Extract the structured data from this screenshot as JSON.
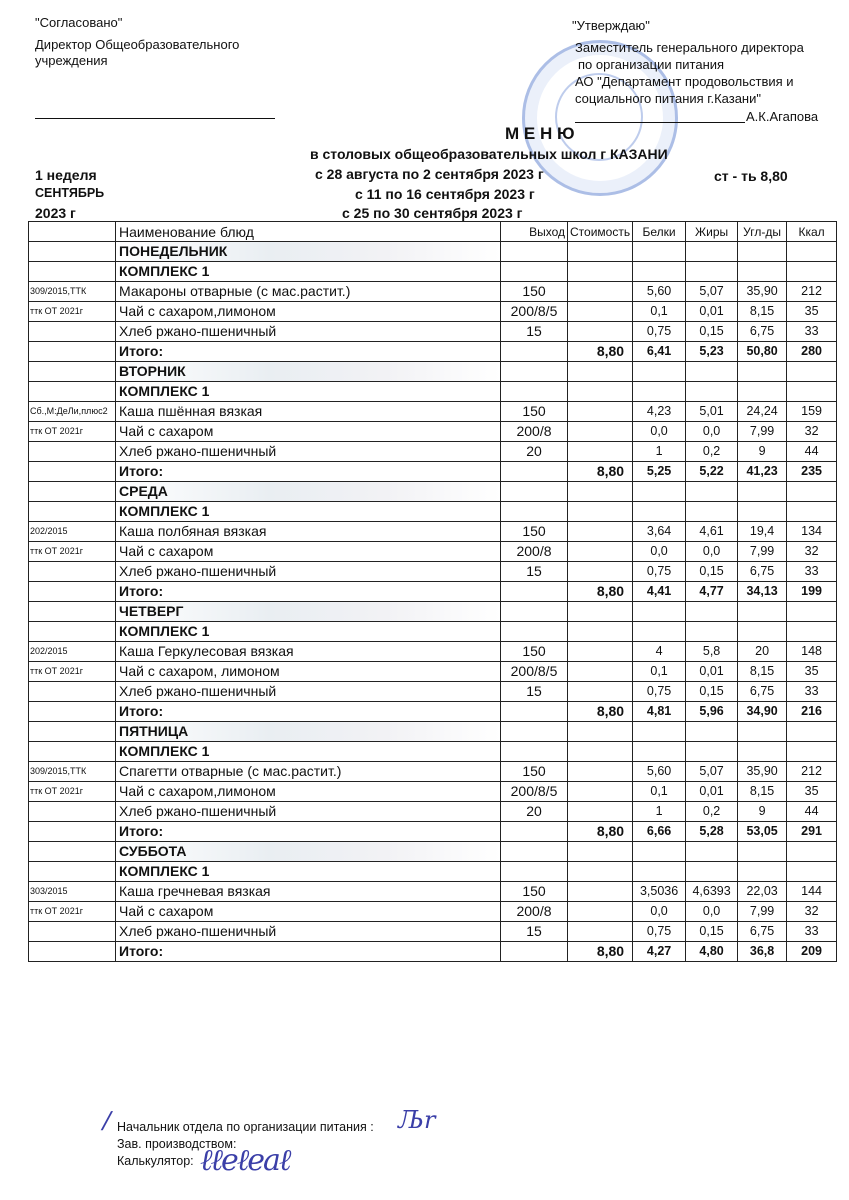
{
  "header": {
    "left": {
      "agreed": "\"Согласовано\"",
      "line1": "Директор Общеобразовательного",
      "line2": "учреждения"
    },
    "right": {
      "approve": "\"Утверждаю\"",
      "line1": "Заместитель генерального директора",
      "line2": "по организации питания",
      "line3": "АО \"Департамент продовольствия и",
      "line4": "социального питания г.Казани\"",
      "signer": "А.К.Агапова"
    },
    "title": "М Е Н Ю",
    "subtitle": "в столовых общеобразовательных школ г КАЗАНИ",
    "periods": [
      "с  28 августа   по  2  сентября  2023 г",
      "с  11  по 16  сентября 2023 г",
      "с 25  по 30 сентября 2023 г"
    ],
    "week": "1 неделя",
    "month": "СЕНТЯБРЬ",
    "year": "2023 г",
    "price": "ст - ть 8,80"
  },
  "table": {
    "columns": [
      "",
      "Наименование блюд",
      "Выход",
      "Стоимость",
      "Белки",
      "Жиры",
      "Угл-ды",
      "Ккал"
    ],
    "days": [
      {
        "day": "ПОНЕДЕЛЬНИК",
        "kompleks": "КОМПЛЕКС 1",
        "items": [
          {
            "code": "309/2015,ТТК",
            "name": "Макароны отварные (с мас.растит.)",
            "out": "150",
            "b": "5,60",
            "j": "5,07",
            "u": "35,90",
            "k": "212"
          },
          {
            "code": "ттк ОТ 2021г",
            "name": "Чай с сахаром,лимоном",
            "out": "200/8/5",
            "b": "0,1",
            "j": "0,01",
            "u": "8,15",
            "k": "35"
          },
          {
            "code": "",
            "name": "Хлеб ржано-пшеничный",
            "out": "15",
            "b": "0,75",
            "j": "0,15",
            "u": "6,75",
            "k": "33"
          }
        ],
        "total": {
          "label": "Итого:",
          "cost": "8,80",
          "b": "6,41",
          "j": "5,23",
          "u": "50,80",
          "k": "280"
        }
      },
      {
        "day": "ВТОРНИК",
        "kompleks": "КОМПЛЕКС 1",
        "items": [
          {
            "code": "Сб.,М:ДеЛи,плюс2",
            "name": "Каша пшённая вязкая",
            "out": "150",
            "b": "4,23",
            "j": "5,01",
            "u": "24,24",
            "k": "159"
          },
          {
            "code": "ттк ОТ 2021г",
            "name": "Чай с сахаром",
            "out": "200/8",
            "b": "0,0",
            "j": "0,0",
            "u": "7,99",
            "k": "32"
          },
          {
            "code": "",
            "name": "Хлеб ржано-пшеничный",
            "out": "20",
            "b": "1",
            "j": "0,2",
            "u": "9",
            "k": "44"
          }
        ],
        "total": {
          "label": "Итого:",
          "cost": "8,80",
          "b": "5,25",
          "j": "5,22",
          "u": "41,23",
          "k": "235"
        }
      },
      {
        "day": "СРЕДА",
        "kompleks": "КОМПЛЕКС 1",
        "items": [
          {
            "code": "202/2015",
            "name": "Каша  полбяная вязкая",
            "out": "150",
            "b": "3,64",
            "j": "4,61",
            "u": "19,4",
            "k": "134"
          },
          {
            "code": "ттк ОТ 2021г",
            "name": "Чай с сахаром",
            "out": "200/8",
            "b": "0,0",
            "j": "0,0",
            "u": "7,99",
            "k": "32"
          },
          {
            "code": "",
            "name": "Хлеб ржано-пшеничный",
            "out": "15",
            "b": "0,75",
            "j": "0,15",
            "u": "6,75",
            "k": "33"
          }
        ],
        "total": {
          "label": "Итого:",
          "cost": "8,80",
          "b": "4,41",
          "j": "4,77",
          "u": "34,13",
          "k": "199"
        }
      },
      {
        "day": "ЧЕТВЕРГ",
        "kompleks": "КОМПЛЕКС 1",
        "items": [
          {
            "code": "202/2015",
            "name": "Каша  Геркулесовая вязкая",
            "out": "150",
            "b": "4",
            "j": "5,8",
            "u": "20",
            "k": "148"
          },
          {
            "code": "ттк ОТ 2021г",
            "name": "Чай с сахаром, лимоном",
            "out": "200/8/5",
            "b": "0,1",
            "j": "0,01",
            "u": "8,15",
            "k": "35"
          },
          {
            "code": "",
            "name": "Хлеб ржано-пшеничный",
            "out": "15",
            "b": "0,75",
            "j": "0,15",
            "u": "6,75",
            "k": "33"
          }
        ],
        "total": {
          "label": "Итого:",
          "cost": "8,80",
          "b": "4,81",
          "j": "5,96",
          "u": "34,90",
          "k": "216"
        }
      },
      {
        "day": "ПЯТНИЦА",
        "kompleks": "КОМПЛЕКС 1",
        "items": [
          {
            "code": "309/2015,ТТК",
            "name": "Спагетти отварные (с мас.растит.)",
            "out": "150",
            "b": "5,60",
            "j": "5,07",
            "u": "35,90",
            "k": "212"
          },
          {
            "code": "ттк ОТ 2021г",
            "name": "Чай с сахаром,лимоном",
            "out": "200/8/5",
            "b": "0,1",
            "j": "0,01",
            "u": "8,15",
            "k": "35"
          },
          {
            "code": "",
            "name": "Хлеб ржано-пшеничный",
            "out": "20",
            "b": "1",
            "j": "0,2",
            "u": "9",
            "k": "44"
          }
        ],
        "total": {
          "label": "Итого:",
          "cost": "8,80",
          "b": "6,66",
          "j": "5,28",
          "u": "53,05",
          "k": "291"
        }
      },
      {
        "day": "СУББОТА",
        "kompleks": "КОМПЛЕКС 1",
        "items": [
          {
            "code": "303/2015",
            "name": "Каша гречневая вязкая",
            "out": "150",
            "b": "3,5036",
            "j": "4,6393",
            "u": "22,03",
            "k": "144"
          },
          {
            "code": "ттк ОТ 2021г",
            "name": "Чай с сахаром",
            "out": "200/8",
            "b": "0,0",
            "j": "0,0",
            "u": "7,99",
            "k": "32"
          },
          {
            "code": "",
            "name": "Хлеб ржано-пшеничный",
            "out": "15",
            "b": "0,75",
            "j": "0,15",
            "u": "6,75",
            "k": "33"
          }
        ],
        "total": {
          "label": "Итого:",
          "cost": "8,80",
          "b": "4,27",
          "j": "4,80",
          "u": "36,8",
          "k": "209"
        }
      }
    ]
  },
  "footer": {
    "head": "Начальник отдела по организации питания :",
    "production": "Зав. производством:",
    "calculator": "Калькулятор:"
  },
  "colors": {
    "stamp": "#5a82d2",
    "signature": "#3b3fa8"
  }
}
